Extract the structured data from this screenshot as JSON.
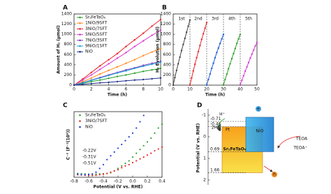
{
  "chart_data": [
    {
      "type": "line",
      "panel_label": "A",
      "xlabel": "Time (h)",
      "ylabel": "Amount of H₂ (μmol)",
      "x": [
        0,
        1,
        2,
        3,
        4,
        5,
        6,
        7,
        8,
        9,
        10
      ],
      "xlim": [
        0,
        10
      ],
      "xticks": [
        0,
        2,
        4,
        6,
        8,
        10
      ],
      "ylim": [
        0,
        1400
      ],
      "yticks": [
        0,
        200,
        400,
        600,
        800,
        1000,
        1200,
        1400
      ],
      "legend": "upper left",
      "series": [
        {
          "name": "Sr₂FeTaO₆",
          "color": "#2ca02c",
          "values": [
            0,
            35,
            70,
            100,
            135,
            170,
            200,
            235,
            270,
            300,
            330
          ]
        },
        {
          "name": "1NiO/9SFT",
          "color": "#ff8c1a",
          "values": [
            0,
            70,
            140,
            220,
            290,
            360,
            430,
            500,
            580,
            650,
            720
          ]
        },
        {
          "name": "3NiO/7SFT",
          "color": "#e8262a",
          "values": [
            0,
            120,
            250,
            380,
            500,
            620,
            760,
            890,
            1020,
            1160,
            1290
          ]
        },
        {
          "name": "5NiO/5SFT",
          "color": "#d63fd0",
          "values": [
            0,
            100,
            200,
            310,
            420,
            530,
            640,
            760,
            870,
            980,
            1080
          ]
        },
        {
          "name": "7NiO/3SFT",
          "color": "#7b3fbf",
          "values": [
            0,
            50,
            100,
            150,
            200,
            250,
            300,
            340,
            390,
            430,
            470
          ]
        },
        {
          "name": "9NiO/1SFT",
          "color": "#1f9fd6",
          "values": [
            0,
            45,
            95,
            140,
            190,
            240,
            280,
            330,
            370,
            410,
            450
          ]
        },
        {
          "name": "NiO",
          "color": "#1f2f8f",
          "values": [
            0,
            15,
            30,
            45,
            55,
            70,
            85,
            100,
            110,
            125,
            140
          ]
        }
      ]
    },
    {
      "type": "line",
      "panel_label": "B",
      "xlabel": "Time (h)",
      "ylabel": "H₂ Evolution (μmol)",
      "xlim": [
        0,
        50
      ],
      "xticks": [
        0,
        10,
        20,
        30,
        40,
        50
      ],
      "ylim": [
        0,
        1400
      ],
      "yticks": [
        0,
        200,
        400,
        600,
        800,
        1000,
        1200,
        1400
      ],
      "cycle_labels": [
        "1st",
        "2nd",
        "3rd",
        "4th",
        "5th"
      ],
      "cycle_boundaries": [
        10,
        20,
        30,
        40
      ],
      "series": [
        {
          "color": "#444444",
          "x": [
            0,
            1,
            2,
            3,
            4,
            5,
            6,
            7,
            8,
            9,
            10
          ],
          "values": [
            0,
            150,
            290,
            420,
            550,
            680,
            800,
            920,
            1040,
            1160,
            1280
          ]
        },
        {
          "color": "#e8262a",
          "x": [
            10,
            11,
            12,
            13,
            14,
            15,
            16,
            17,
            18,
            19,
            20
          ],
          "values": [
            0,
            140,
            280,
            410,
            540,
            660,
            780,
            900,
            1010,
            1120,
            1230
          ]
        },
        {
          "color": "#1f5fd6",
          "x": [
            20,
            21,
            22,
            23,
            24,
            25,
            26,
            27,
            28,
            29,
            30
          ],
          "values": [
            0,
            110,
            220,
            330,
            430,
            540,
            640,
            730,
            820,
            910,
            1000
          ]
        },
        {
          "color": "#2ca02c",
          "x": [
            30,
            31,
            32,
            33,
            34,
            35,
            36,
            37,
            38,
            39,
            40
          ],
          "values": [
            0,
            110,
            215,
            320,
            420,
            520,
            620,
            720,
            820,
            910,
            1000
          ]
        },
        {
          "color": "#d63fd0",
          "x": [
            40,
            41,
            42,
            43,
            44,
            45,
            46,
            47,
            48,
            49,
            50
          ],
          "values": [
            0,
            95,
            185,
            275,
            360,
            445,
            530,
            610,
            690,
            770,
            840
          ]
        }
      ]
    },
    {
      "type": "scatter",
      "panel_label": "C",
      "xlabel": "Potential (V vs. RHE)",
      "ylabel": "C⁻² (F⁻²(10⁹))",
      "xlim": [
        -0.8,
        0.4
      ],
      "xticks": [
        -0.8,
        -0.6,
        -0.4,
        -0.2,
        {
          "value": 0,
          "label": "0.0"
        },
        0.2,
        0.4
      ],
      "ylim": [
        0,
        2.6
      ],
      "legend": "upper left",
      "annotations": [
        "-0.22V",
        "-0.31V",
        "-0.51V"
      ],
      "series": [
        {
          "name": "Sr₂FeTaO₆",
          "color": "#2ca02c",
          "x": [
            -0.75,
            -0.7,
            -0.65,
            -0.6,
            -0.55,
            -0.5,
            -0.45,
            -0.4,
            -0.35,
            -0.3,
            -0.25,
            -0.2,
            -0.15,
            -0.1,
            -0.05,
            0,
            0.05,
            0.1,
            0.15,
            0.2,
            0.25,
            0.3,
            0.35,
            0.4
          ],
          "values": [
            0.15,
            0.14,
            0.13,
            0.12,
            0.12,
            0.12,
            0.13,
            0.14,
            0.15,
            0.18,
            0.25,
            0.35,
            0.45,
            0.55,
            0.65,
            0.8,
            0.95,
            1.1,
            1.25,
            1.4,
            1.55,
            1.75,
            1.95,
            2.1
          ]
        },
        {
          "name": "3NiO/7SFT",
          "color": "#e8262a",
          "x": [
            -0.75,
            -0.7,
            -0.65,
            -0.6,
            -0.55,
            -0.5,
            -0.45,
            -0.4,
            -0.35,
            -0.3,
            -0.25,
            -0.2,
            -0.15,
            -0.1,
            -0.05,
            0,
            0.05,
            0.1,
            0.15,
            0.2,
            0.25,
            0.3,
            0.35,
            0.4
          ],
          "values": [
            0.1,
            0.09,
            0.08,
            0.07,
            0.07,
            0.08,
            0.1,
            0.12,
            0.15,
            0.2,
            0.25,
            0.3,
            0.38,
            0.45,
            0.5,
            0.58,
            0.65,
            0.73,
            0.8,
            0.88,
            0.95,
            1.05,
            1.12,
            1.2
          ]
        },
        {
          "name": "NiO",
          "color": "#1f3fd6",
          "x": [
            -0.75,
            -0.7,
            -0.65,
            -0.6,
            -0.55,
            -0.5,
            -0.45,
            -0.4,
            -0.35,
            -0.3,
            -0.25,
            -0.2,
            -0.15,
            -0.1,
            -0.05,
            0,
            0.05,
            0.1,
            0.15
          ],
          "values": [
            0.12,
            0.1,
            0.1,
            0.11,
            0.13,
            0.2,
            0.35,
            0.5,
            0.7,
            0.85,
            1.0,
            1.15,
            1.3,
            1.45,
            1.6,
            1.75,
            1.95,
            2.2,
            2.45
          ]
        }
      ]
    }
  ],
  "diagram": {
    "panel_label": "D",
    "ylabel": "Potential (V vs. RHE)",
    "yticks": [
      -1,
      0,
      1,
      2
    ],
    "levels": [
      -0.71,
      -0.46,
      0.69,
      1.66
    ],
    "semiconductor": "Sr₂FeTaO₆",
    "cocatalyst": "NiO",
    "labels": [
      "H⁺",
      "2H",
      "Pt",
      "e",
      "TEOA",
      "TEOA⁺",
      "h"
    ]
  }
}
